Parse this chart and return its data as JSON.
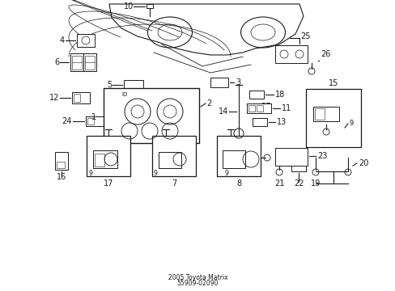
{
  "bg_color": "#ffffff",
  "line_color": "#1a1a1a",
  "title_line1": "2005 Toyota Matrix",
  "title_line2": "55909-02090",
  "figsize": [
    4.89,
    3.6
  ],
  "dpi": 100
}
